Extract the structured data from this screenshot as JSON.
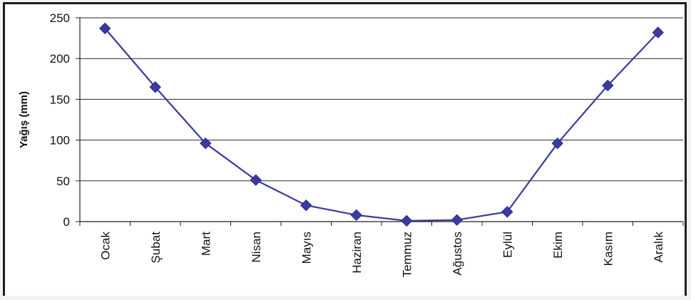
{
  "chart_data": {
    "type": "line",
    "categories": [
      "Ocak",
      "Şubat",
      "Mart",
      "Nisan",
      "Mayıs",
      "Haziran",
      "Temmuz",
      "Ağustos",
      "Eylül",
      "Ekim",
      "Kasım",
      "Aralık"
    ],
    "series": [
      {
        "values": [
          237,
          165,
          96,
          51,
          20,
          8,
          1,
          2,
          12,
          96,
          167,
          232
        ],
        "color": "#3a3aa0"
      }
    ],
    "title": "",
    "xlabel": "",
    "ylabel": "Yağış (mm)",
    "ylim": [
      0,
      250
    ],
    "yticks": [
      "0",
      "50",
      "100",
      "150",
      "200",
      "250"
    ],
    "grid": true,
    "legend": "none",
    "marker": "diamond"
  }
}
